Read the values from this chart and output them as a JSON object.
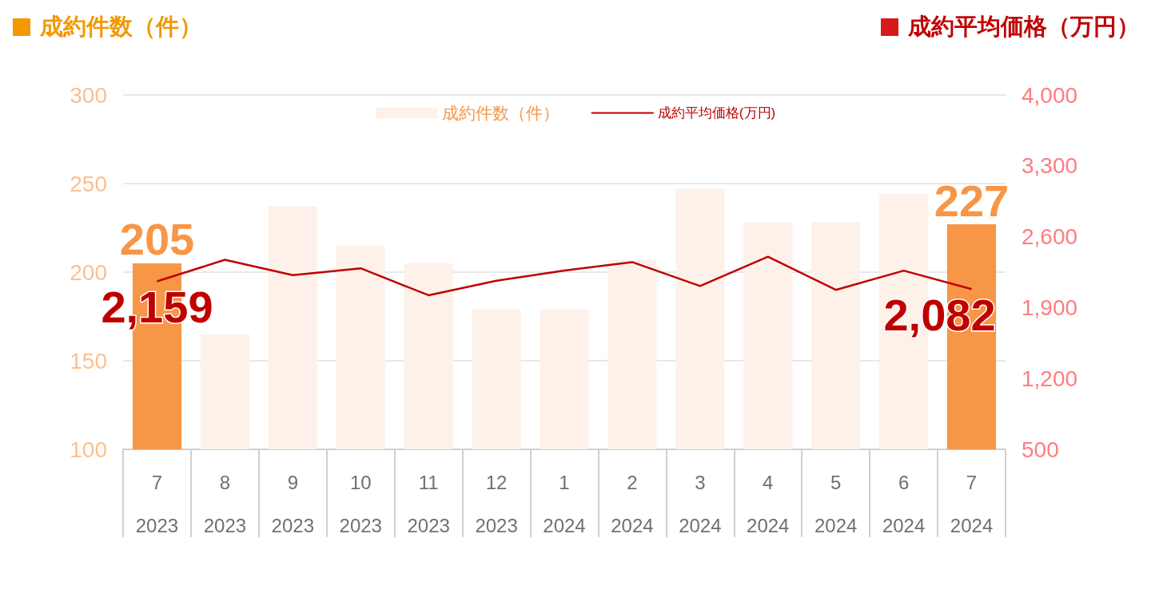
{
  "chart_data": {
    "type": "bar",
    "ylabel": "成約件数（件）",
    "y2label": "成約平均価格（万円）",
    "categories": [
      "7\n2023",
      "8\n2023",
      "9\n2023",
      "10\n2023",
      "11\n2023",
      "12\n2023",
      "1\n2024",
      "2\n2024",
      "3\n2024",
      "4\n2024",
      "5\n2024",
      "6\n2024",
      "7\n2024"
    ],
    "series": [
      {
        "name": "成約件数（件）",
        "color": "#fdf1e9",
        "colors": [
          "#f79646",
          "#fdf1e9",
          "#fdf1e9",
          "#fdf1e9",
          "#fdf1e9",
          "#fdf1e9",
          "#fdf1e9",
          "#fdf1e9",
          "#fdf1e9",
          "#fdf1e9",
          "#fdf1e9",
          "#fdf1e9",
          "#f79646"
        ],
        "values": [
          205,
          165,
          237,
          215,
          205,
          179,
          179,
          207,
          247,
          228,
          228,
          244,
          227
        ],
        "value_labels": [
          "205",
          null,
          null,
          null,
          null,
          null,
          null,
          null,
          null,
          null,
          null,
          null,
          "227"
        ]
      },
      {
        "name": "成約平均価格(万円)",
        "type": "line",
        "axis": "y2",
        "color": "#c00000",
        "values": [
          2159,
          2372,
          2220,
          2288,
          2022,
          2166,
          2265,
          2349,
          2113,
          2402,
          2075,
          2265,
          2082
        ],
        "value_labels": [
          "2,159",
          null,
          null,
          null,
          null,
          null,
          null,
          null,
          null,
          null,
          null,
          null,
          "2,082"
        ]
      }
    ],
    "ylim": [
      100,
      300
    ],
    "yticks": [
      100,
      150,
      200,
      250,
      300
    ],
    "y2lim": [
      500,
      4000
    ],
    "y2ticks": [
      {
        "value": 500,
        "label": "500"
      },
      {
        "value": 1200,
        "label": "1,200"
      },
      {
        "value": 1900,
        "label": "1,900"
      },
      {
        "value": 2600,
        "label": "2,600"
      },
      {
        "value": 3300,
        "label": "3,300"
      },
      {
        "value": 4000,
        "label": "4,000"
      }
    ],
    "grid": "y",
    "legend": "top",
    "marker": "none",
    "line_style": "solid"
  }
}
